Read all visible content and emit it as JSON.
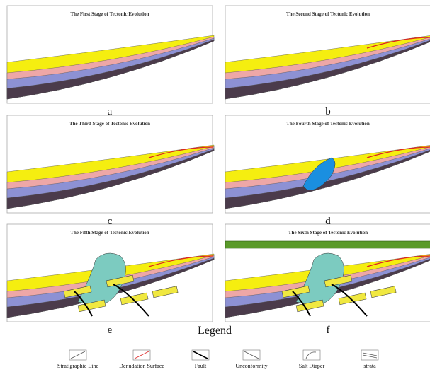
{
  "panels": [
    {
      "title": "The First Stage of Tectonic Evolution",
      "label": "a"
    },
    {
      "title": "The Second Stage of Tectonic Evolution",
      "label": "b"
    },
    {
      "title": "The Third Stage of Tectonic Evolution",
      "label": "c"
    },
    {
      "title": "The Fourth Stage of Tectonic Evolution",
      "label": "d"
    },
    {
      "title": "The Fifth Stage of Tectonic Evolution",
      "label": "e"
    },
    {
      "title": "The Sixth Stage of Tectonic Evolution",
      "label": "f"
    }
  ],
  "legend": {
    "title": "Legend",
    "items": [
      "Stratigraphic Line",
      "Denudation Surface",
      "Fault",
      "Unconformity",
      "Salt Diaper",
      "strata"
    ]
  }
}
